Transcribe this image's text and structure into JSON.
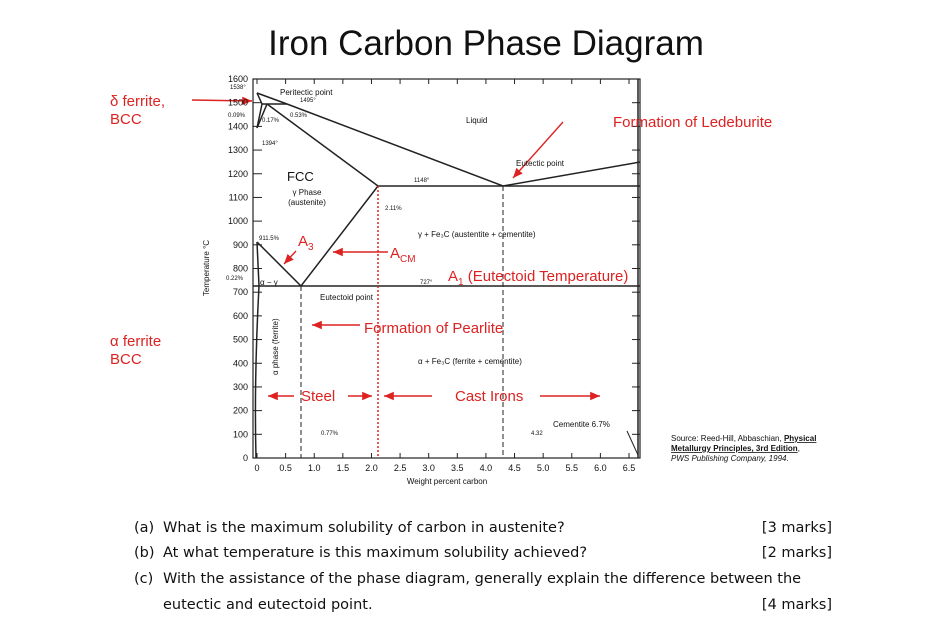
{
  "title": "Iron Carbon Phase Diagram",
  "diagram": {
    "y_axis_label": "Temperature °C",
    "x_axis_label": "Weight percent carbon",
    "xlim": [
      0,
      6.5
    ],
    "ylim": [
      0,
      1600
    ],
    "xticks": [
      0,
      0.5,
      {
        "value": 1,
        "label": "1.0"
      },
      1.5,
      {
        "value": 2,
        "label": "2.0"
      },
      2.5,
      {
        "value": 3,
        "label": "3.0"
      },
      3.5,
      {
        "value": 4,
        "label": "4.0"
      },
      4.5,
      {
        "value": 5,
        "label": "5.0"
      },
      5.5,
      {
        "value": 6,
        "label": "6.0"
      },
      6.5
    ],
    "yticks": [
      0,
      100,
      200,
      300,
      400,
      500,
      600,
      700,
      800,
      900,
      1000,
      1100,
      1200,
      1300,
      1400,
      1500,
      1600
    ],
    "point_labels": {
      "t1538": "1538°",
      "t1495": "1495°",
      "c009": "0.09%",
      "c017": "0.17%",
      "c053": "0.53%",
      "t1394": "1394°",
      "t1148": "1148°",
      "c211": "2.11%",
      "t9115": "911.5%",
      "c022": "0.22%",
      "t727": "727°",
      "c077": "0.77%",
      "c432": "4.32"
    },
    "regions": {
      "liquid": "Liquid",
      "fcc": "FCC",
      "gamma": "γ Phase",
      "austenite": "(austenite)",
      "alpha_gamma": "α − γ",
      "alpha_phase": "α phase (ferrite)",
      "gamma_cementite": "γ + Fe₃C (austentite + cementite)",
      "alpha_cementite": "α + Fe₃C (ferrite + cementite)",
      "cementite": "Cementite 6.7%"
    },
    "annotations": {
      "peritectic": "Peritectic point",
      "eutectic": "Eutectic point",
      "eutectoid": "Eutectoid point",
      "ledeburite": "Formation of Ledeburite",
      "pearlite": "Formation of Pearlite",
      "steel": "Steel",
      "cast_irons": "Cast Irons",
      "a3": {
        "main": "A",
        "sub": "3"
      },
      "acm": {
        "main": "A",
        "sub": "CM"
      },
      "a1": {
        "main": "A",
        "sub": "1",
        "rest": " (Eutectoid Temperature)"
      }
    },
    "side_labels": {
      "delta_1": "δ ferrite,",
      "delta_2": "BCC",
      "alpha_1": "α ferrite",
      "alpha_2": "BCC"
    },
    "source": {
      "prefix": "Source: Reed-Hill, Abbaschian, ",
      "book_1": "Physical",
      "book_2": "Metallurgy Principles, 3rd Edition",
      "tail": ",",
      "publisher": "PWS Publishing Company, 1994."
    }
  },
  "questions": [
    {
      "label": "(a)",
      "text": "What is the maximum solubility of carbon in austenite?",
      "marks": "[3 marks]"
    },
    {
      "label": "(b)",
      "text": "At what temperature is this maximum solubility achieved?",
      "marks": "[2 marks]"
    },
    {
      "label": "(c)",
      "text": "With the assistance of the phase diagram, generally explain the difference between the",
      "text2": "eutectic and eutectoid point.",
      "marks": "[4 marks]"
    }
  ]
}
